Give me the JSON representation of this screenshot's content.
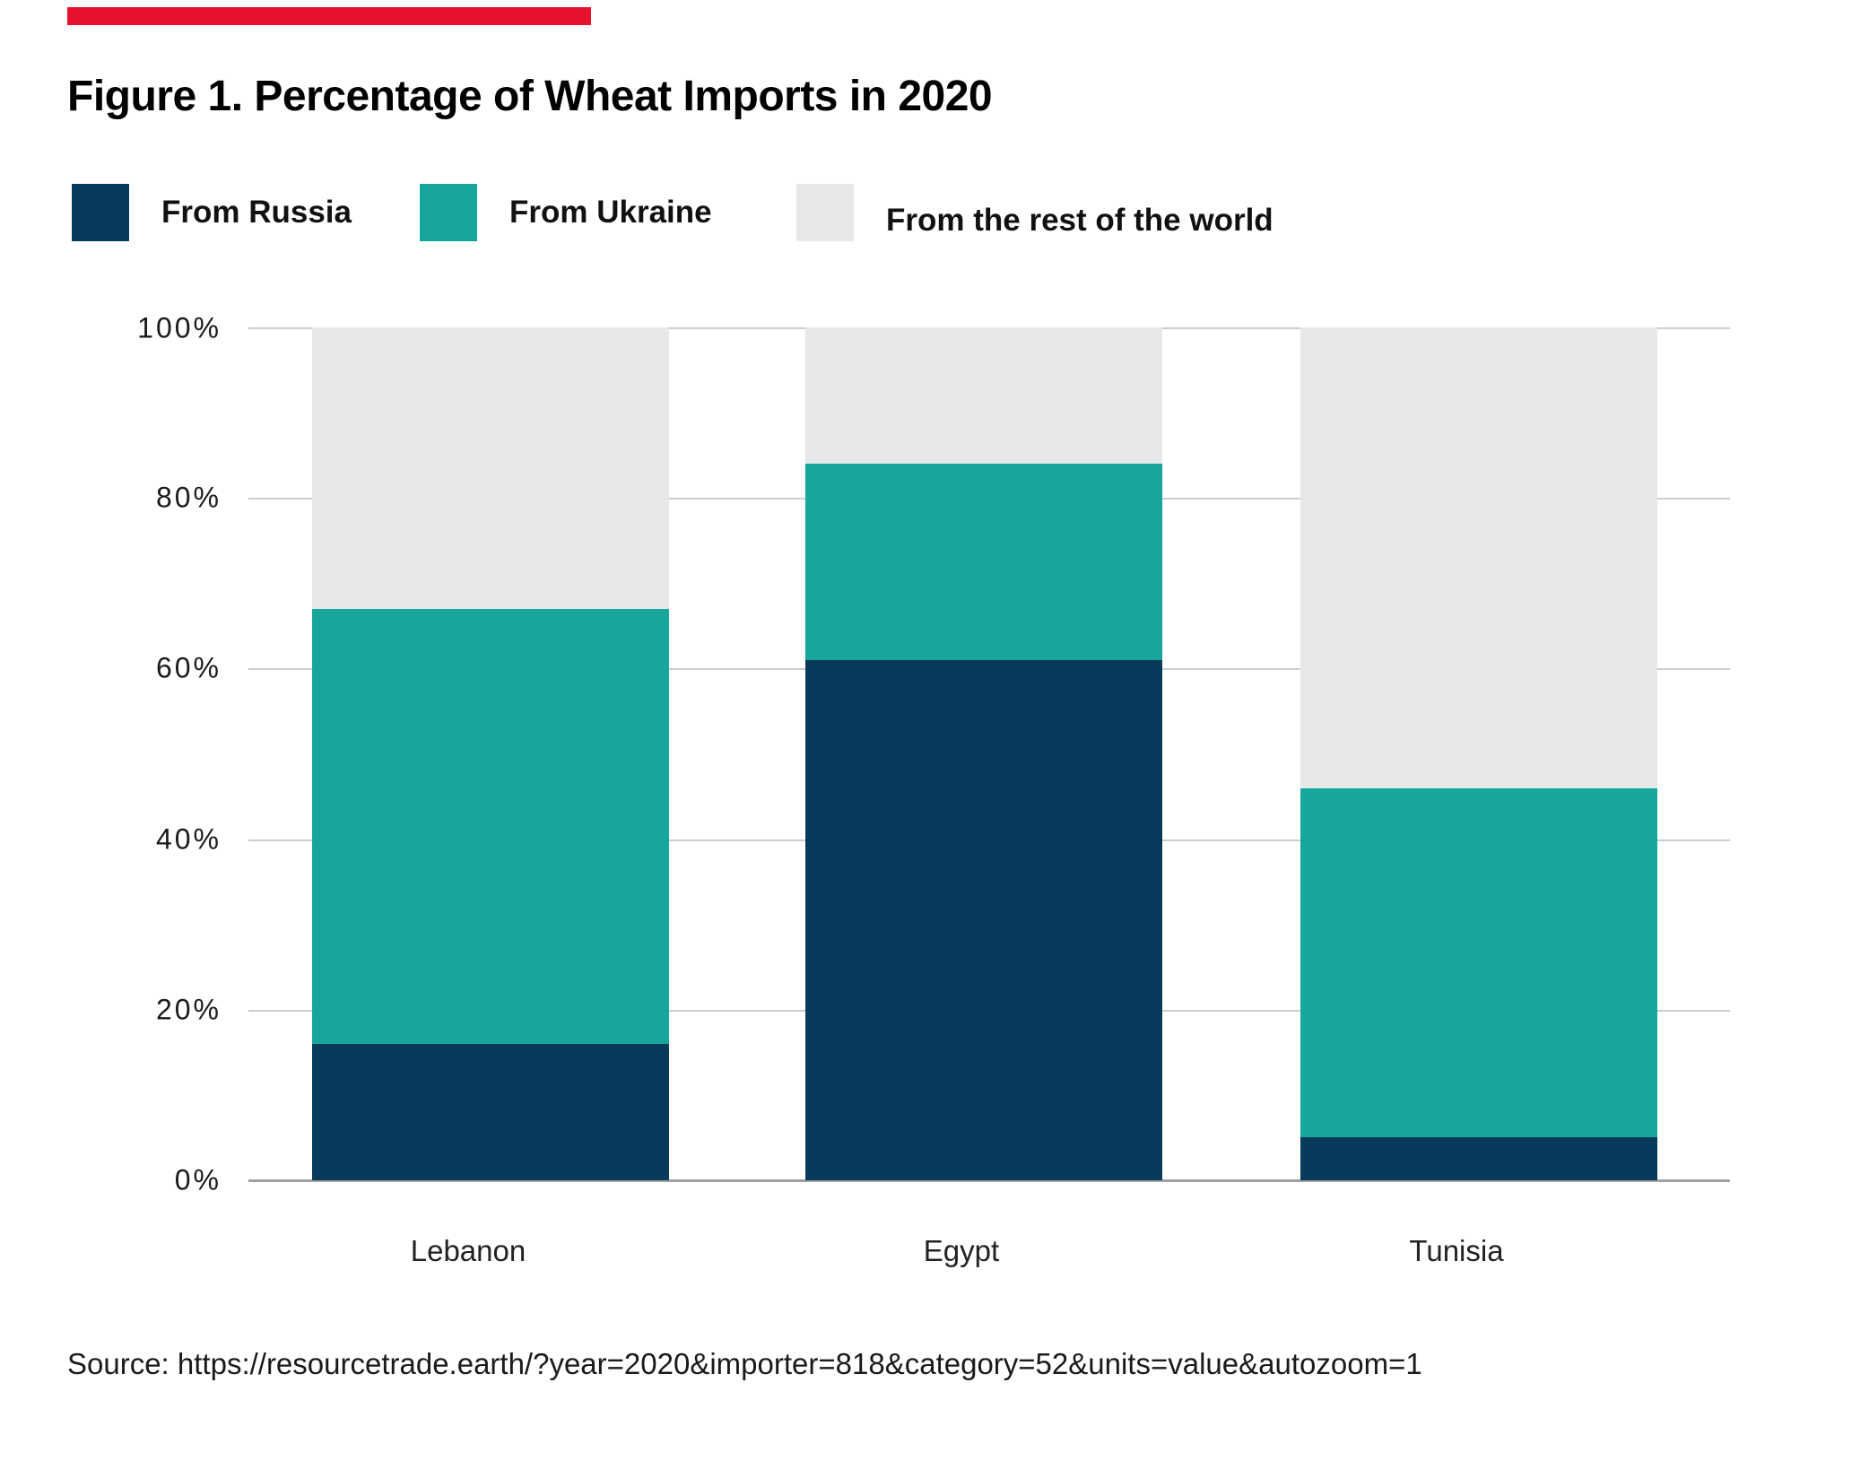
{
  "accent": {
    "color": "#e8112d"
  },
  "title": "Figure 1. Percentage of Wheat Imports in 2020",
  "chart_data": {
    "type": "bar",
    "stacked": true,
    "categories": [
      "Lebanon",
      "Egypt",
      "Tunisia"
    ],
    "series": [
      {
        "name": "From Russia",
        "color": "#083a5c",
        "values": [
          16,
          61,
          5
        ]
      },
      {
        "name": "From Ukraine",
        "color": "#16a69b",
        "values": [
          51,
          23,
          41
        ]
      },
      {
        "name": "From the rest of the world",
        "color": "#e6e8e9",
        "values": [
          33,
          16,
          54
        ]
      }
    ],
    "y_ticks": [
      "100%",
      "80%",
      "60%",
      "40%",
      "20%",
      "0%"
    ],
    "ylim": [
      0,
      100
    ],
    "xlabel": "",
    "ylabel": "",
    "grid": true,
    "legend_position": "top",
    "gridline_color": "#cbcdcf",
    "axis_line_color": "#9fa1a4"
  },
  "source_line": "Source: https://resourcetrade.earth/?year=2020&importer=818&category=52&units=value&autozoom=1"
}
